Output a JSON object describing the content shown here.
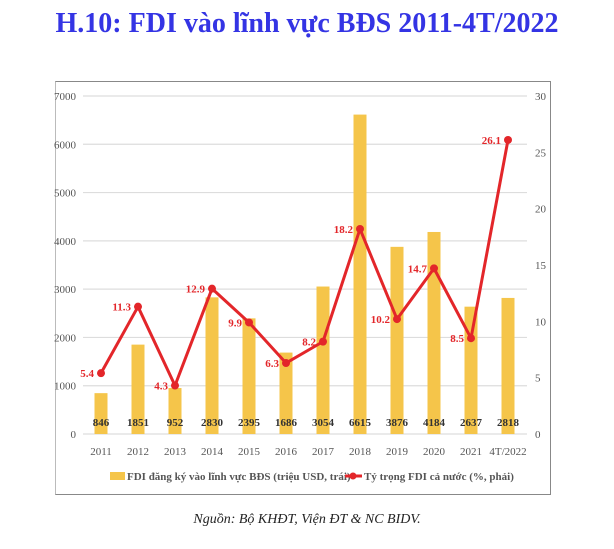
{
  "title": "H.10: FDI vào lĩnh vực BĐS 2011-4T/2022",
  "source": "Nguồn: Bộ KHĐT, Viện ĐT & NC BIDV.",
  "chart_data": {
    "type": "bar+line",
    "categories": [
      "2011",
      "2012",
      "2013",
      "2014",
      "2015",
      "2016",
      "2017",
      "2018",
      "2019",
      "2020",
      "2021",
      "4T/2022"
    ],
    "series": [
      {
        "name": "FDI đăng ký vào lĩnh vực BĐS (triệu USD, trái)",
        "type": "bar",
        "axis": "left",
        "color": "#f5c54a",
        "values": [
          846,
          1851,
          952,
          2830,
          2395,
          1686,
          3054,
          6615,
          3876,
          4184,
          2637,
          2818
        ]
      },
      {
        "name": "Tỷ trọng FDI cả nước (%, phải)",
        "type": "line",
        "axis": "right",
        "color": "#e3262a",
        "values": [
          5.4,
          11.3,
          4.3,
          12.9,
          9.9,
          6.3,
          8.2,
          18.2,
          10.2,
          14.7,
          8.5,
          26.1
        ]
      }
    ],
    "bar_labels": [
      "846",
      "1851",
      "952",
      "2830",
      "2395",
      "1686",
      "3054",
      "6615",
      "3876",
      "4184",
      "2637",
      "2818"
    ],
    "line_labels": [
      "5.4",
      "11.3",
      "4.3",
      "12.9",
      "9.9",
      "6.3",
      "8.2",
      "18.2",
      "10.2",
      "14.7",
      "8.5",
      "26.1"
    ],
    "ylim_left": [
      0,
      7000
    ],
    "yticks_left": [
      "0",
      "1000",
      "2000",
      "3000",
      "4000",
      "5000",
      "6000",
      "7000"
    ],
    "ylim_right": [
      0,
      30
    ],
    "yticks_right": [
      "0",
      "5",
      "10",
      "15",
      "20",
      "25",
      "30"
    ],
    "grid": true,
    "legend": "bottom"
  }
}
